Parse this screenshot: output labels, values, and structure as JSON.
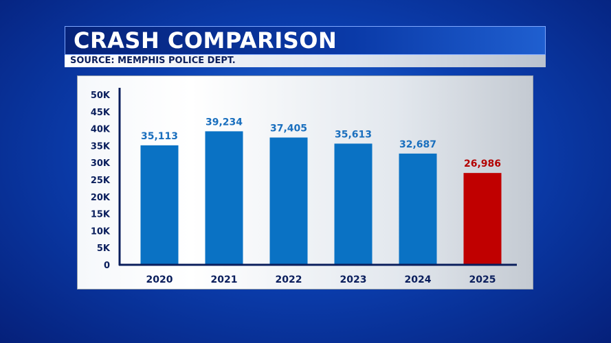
{
  "header": {
    "title": "CRASH COMPARISON",
    "source": "SOURCE: MEMPHIS POLICE DEPT."
  },
  "colors": {
    "bar": "#0a72c4",
    "highlight": "#c00000",
    "label_blue": "#1a6fbe",
    "label_red": "#b30000",
    "axis": "#0a1e5c"
  },
  "chart_data": {
    "type": "bar",
    "title": "CRASH COMPARISON",
    "xlabel": "",
    "ylabel": "",
    "categories": [
      "2020",
      "2021",
      "2022",
      "2023",
      "2024",
      "2025"
    ],
    "values": [
      35113,
      39234,
      37405,
      35613,
      32687,
      26986
    ],
    "value_labels": [
      "35,113",
      "39,234",
      "37,405",
      "35,613",
      "32,687",
      "26,986"
    ],
    "highlighted": [
      false,
      false,
      false,
      false,
      false,
      true
    ],
    "ylim": [
      0,
      50000
    ],
    "yticks": [
      0,
      5000,
      10000,
      15000,
      20000,
      25000,
      30000,
      35000,
      40000,
      45000,
      50000
    ],
    "ytick_labels": [
      "0",
      "5K",
      "10K",
      "15K",
      "20K",
      "25K",
      "30K",
      "35K",
      "40K",
      "45K",
      "50K"
    ],
    "grid": false,
    "legend": "none"
  }
}
